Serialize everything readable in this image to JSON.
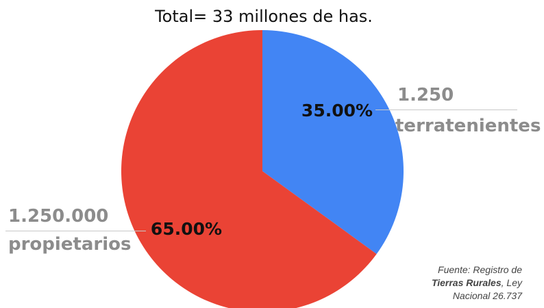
{
  "chart_data": {
    "type": "pie",
    "title": "Total= 33 millones de has.",
    "slices": [
      {
        "value": 35.0,
        "value_label": "35.00%",
        "count": "1.250",
        "group": "terratenientes",
        "color": "#4285f4"
      },
      {
        "value": 65.0,
        "value_label": "65.00%",
        "count": "1.250.000",
        "group": "propietarios",
        "color": "#ea4335"
      }
    ]
  },
  "source_note": {
    "line1": "Fuente: Registro de",
    "bold_part": "Tierras Rurales",
    "line2_rest": ", Ley",
    "line3": "Nacional 26.737"
  }
}
